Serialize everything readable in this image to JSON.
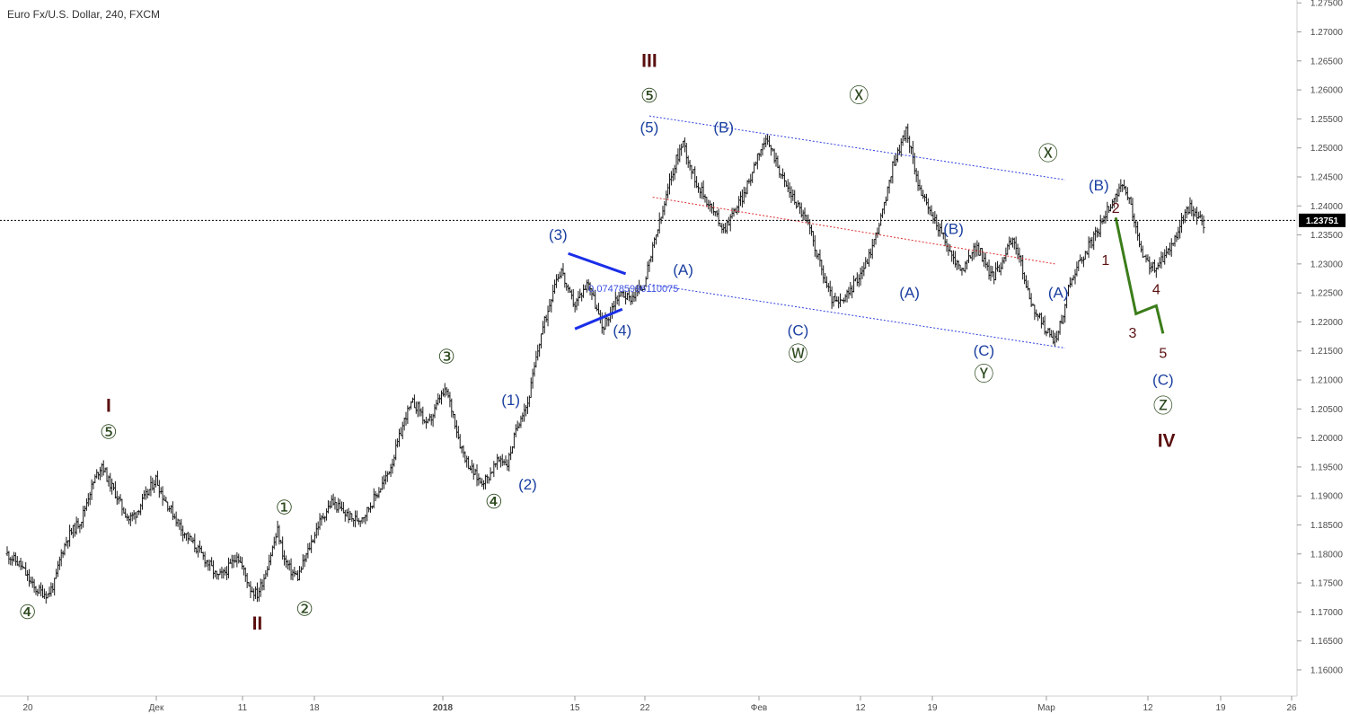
{
  "title": "Euro Fx/U.S. Dollar, 240, FXCM",
  "colors": {
    "candle": "#1a1a1a",
    "blue_label": "#1a3fa0",
    "green_label": "#2d4a1f",
    "maroon_label": "#5a0f0f",
    "channel": "#3040e0",
    "mid_channel": "#e03030",
    "triangle": "#1a2ee8",
    "projection": "#3b7d1a"
  },
  "chart_data": {
    "type": "candlestick",
    "symbol": "Euro Fx/U.S. Dollar",
    "timeframe": "240",
    "source": "FXCM",
    "ylim": [
      1.1555,
      1.2755
    ],
    "price_ticks": [
      "1.27500",
      "1.27000",
      "1.26500",
      "1.26000",
      "1.25500",
      "1.25000",
      "1.24500",
      "1.24000",
      "1.23500",
      "1.23000",
      "1.22500",
      "1.22000",
      "1.21500",
      "1.21000",
      "1.20500",
      "1.20000",
      "1.19500",
      "1.19000",
      "1.18500",
      "1.18000",
      "1.17500",
      "1.17000",
      "1.16500",
      "1.16000"
    ],
    "time_ticks": [
      "20",
      "Дек",
      "11",
      "18",
      "2018",
      "15",
      "22",
      "Фев",
      "12",
      "19",
      "Мар",
      "12",
      "19",
      "26"
    ],
    "last_price": "1.23751",
    "triangle_note": "0.074785996110075",
    "price_path": [
      [
        0,
        1.18
      ],
      [
        4,
        1.179
      ],
      [
        8,
        1.178
      ],
      [
        12,
        1.176
      ],
      [
        16,
        1.174
      ],
      [
        20,
        1.1735
      ],
      [
        24,
        1.173
      ],
      [
        28,
        1.175
      ],
      [
        32,
        1.18
      ],
      [
        36,
        1.183
      ],
      [
        40,
        1.1845
      ],
      [
        44,
        1.186
      ],
      [
        48,
        1.19
      ],
      [
        52,
        1.193
      ],
      [
        56,
        1.1955
      ],
      [
        60,
        1.1925
      ],
      [
        64,
        1.1905
      ],
      [
        68,
        1.188
      ],
      [
        72,
        1.186
      ],
      [
        76,
        1.187
      ],
      [
        80,
        1.189
      ],
      [
        84,
        1.191
      ],
      [
        88,
        1.193
      ],
      [
        92,
        1.19
      ],
      [
        96,
        1.188
      ],
      [
        100,
        1.186
      ],
      [
        104,
        1.184
      ],
      [
        108,
        1.1825
      ],
      [
        112,
        1.181
      ],
      [
        116,
        1.1795
      ],
      [
        120,
        1.178
      ],
      [
        124,
        1.176
      ],
      [
        128,
        1.1765
      ],
      [
        132,
        1.178
      ],
      [
        136,
        1.18
      ],
      [
        140,
        1.177
      ],
      [
        144,
        1.174
      ],
      [
        148,
        1.173
      ],
      [
        152,
        1.176
      ],
      [
        156,
        1.18
      ],
      [
        160,
        1.184
      ],
      [
        164,
        1.179
      ],
      [
        168,
        1.177
      ],
      [
        172,
        1.176
      ],
      [
        176,
        1.179
      ],
      [
        180,
        1.182
      ],
      [
        184,
        1.185
      ],
      [
        188,
        1.187
      ],
      [
        192,
        1.189
      ],
      [
        196,
        1.188
      ],
      [
        200,
        1.187
      ],
      [
        204,
        1.186
      ],
      [
        208,
        1.186
      ],
      [
        212,
        1.187
      ],
      [
        216,
        1.189
      ],
      [
        220,
        1.191
      ],
      [
        224,
        1.193
      ],
      [
        228,
        1.196
      ],
      [
        232,
        1.2
      ],
      [
        236,
        1.204
      ],
      [
        240,
        1.206
      ],
      [
        244,
        1.205
      ],
      [
        248,
        1.202
      ],
      [
        252,
        1.204
      ],
      [
        256,
        1.207
      ],
      [
        260,
        1.208
      ],
      [
        264,
        1.204
      ],
      [
        268,
        1.199
      ],
      [
        272,
        1.196
      ],
      [
        276,
        1.194
      ],
      [
        280,
        1.1925
      ],
      [
        284,
        1.193
      ],
      [
        288,
        1.195
      ],
      [
        292,
        1.1965
      ],
      [
        296,
        1.1955
      ],
      [
        300,
        1.2
      ],
      [
        304,
        1.204
      ],
      [
        308,
        1.206
      ],
      [
        312,
        1.212
      ],
      [
        316,
        1.218
      ],
      [
        320,
        1.222
      ],
      [
        324,
        1.227
      ],
      [
        328,
        1.229
      ],
      [
        332,
        1.225
      ],
      [
        336,
        1.223
      ],
      [
        340,
        1.225
      ],
      [
        344,
        1.227
      ],
      [
        348,
        1.223
      ],
      [
        352,
        1.219
      ],
      [
        356,
        1.221
      ],
      [
        360,
        1.224
      ],
      [
        364,
        1.225
      ],
      [
        368,
        1.224
      ],
      [
        372,
        1.225
      ],
      [
        376,
        1.226
      ],
      [
        380,
        1.23
      ],
      [
        384,
        1.235
      ],
      [
        388,
        1.239
      ],
      [
        392,
        1.244
      ],
      [
        396,
        1.248
      ],
      [
        400,
        1.251
      ],
      [
        404,
        1.247
      ],
      [
        408,
        1.244
      ],
      [
        412,
        1.242
      ],
      [
        416,
        1.24
      ],
      [
        420,
        1.238
      ],
      [
        424,
        1.236
      ],
      [
        428,
        1.238
      ],
      [
        432,
        1.24
      ],
      [
        436,
        1.242
      ],
      [
        440,
        1.245
      ],
      [
        444,
        1.249
      ],
      [
        448,
        1.251
      ],
      [
        452,
        1.25
      ],
      [
        456,
        1.247
      ],
      [
        460,
        1.244
      ],
      [
        464,
        1.242
      ],
      [
        468,
        1.24
      ],
      [
        472,
        1.238
      ],
      [
        476,
        1.235
      ],
      [
        480,
        1.231
      ],
      [
        484,
        1.227
      ],
      [
        488,
        1.224
      ],
      [
        492,
        1.223
      ],
      [
        496,
        1.224
      ],
      [
        500,
        1.226
      ],
      [
        504,
        1.228
      ],
      [
        508,
        1.23
      ],
      [
        512,
        1.233
      ],
      [
        516,
        1.237
      ],
      [
        520,
        1.241
      ],
      [
        524,
        1.247
      ],
      [
        528,
        1.25
      ],
      [
        532,
        1.253
      ],
      [
        536,
        1.248
      ],
      [
        540,
        1.243
      ],
      [
        544,
        1.24
      ],
      [
        548,
        1.238
      ],
      [
        552,
        1.236
      ],
      [
        556,
        1.233
      ],
      [
        560,
        1.231
      ],
      [
        564,
        1.229
      ],
      [
        568,
        1.23
      ],
      [
        572,
        1.233
      ],
      [
        576,
        1.232
      ],
      [
        580,
        1.229
      ],
      [
        584,
        1.228
      ],
      [
        588,
        1.23
      ],
      [
        592,
        1.233
      ],
      [
        596,
        1.234
      ],
      [
        600,
        1.23
      ],
      [
        604,
        1.225
      ],
      [
        608,
        1.222
      ],
      [
        612,
        1.22
      ],
      [
        616,
        1.218
      ],
      [
        620,
        1.217
      ],
      [
        624,
        1.22
      ],
      [
        628,
        1.226
      ],
      [
        632,
        1.229
      ],
      [
        636,
        1.231
      ],
      [
        640,
        1.233
      ],
      [
        644,
        1.235
      ],
      [
        648,
        1.237
      ],
      [
        652,
        1.24
      ],
      [
        656,
        1.242
      ],
      [
        660,
        1.243
      ],
      [
        664,
        1.241
      ],
      [
        668,
        1.236
      ],
      [
        672,
        1.231
      ],
      [
        676,
        1.23
      ],
      [
        680,
        1.229
      ],
      [
        684,
        1.231
      ],
      [
        688,
        1.233
      ],
      [
        692,
        1.235
      ],
      [
        696,
        1.238
      ],
      [
        700,
        1.24
      ],
      [
        704,
        1.238
      ],
      [
        708,
        1.237
      ]
    ],
    "wave_labels": [
      {
        "text": "I",
        "t": 60,
        "p": 1.2055,
        "style": "maroon_big"
      },
      {
        "text": "⑤",
        "t": 60,
        "p": 1.201,
        "style": "green_circle"
      },
      {
        "text": "④",
        "t": 12,
        "p": 1.17,
        "style": "green_circle"
      },
      {
        "text": "II",
        "t": 148,
        "p": 1.168,
        "style": "maroon_big"
      },
      {
        "text": "①",
        "t": 164,
        "p": 1.188,
        "style": "green_circle"
      },
      {
        "text": "②",
        "t": 176,
        "p": 1.1705,
        "style": "green_circle"
      },
      {
        "text": "③",
        "t": 260,
        "p": 1.214,
        "style": "green_circle"
      },
      {
        "text": "④",
        "t": 288,
        "p": 1.189,
        "style": "green_circle"
      },
      {
        "text": "(1)",
        "t": 298,
        "p": 1.2065,
        "style": "blue"
      },
      {
        "text": "(2)",
        "t": 308,
        "p": 1.192,
        "style": "blue"
      },
      {
        "text": "(3)",
        "t": 326,
        "p": 1.235,
        "style": "blue"
      },
      {
        "text": "(4)",
        "t": 364,
        "p": 1.2185,
        "style": "blue"
      },
      {
        "text": "III",
        "t": 380,
        "p": 1.265,
        "style": "maroon_big"
      },
      {
        "text": "⑤",
        "t": 380,
        "p": 1.259,
        "style": "green_circle"
      },
      {
        "text": "(5)",
        "t": 380,
        "p": 1.2535,
        "style": "blue"
      },
      {
        "text": "(A)",
        "t": 400,
        "p": 1.229,
        "style": "blue"
      },
      {
        "text": "(B)",
        "t": 424,
        "p": 1.2535,
        "style": "blue"
      },
      {
        "text": "(C)",
        "t": 468,
        "p": 1.2185,
        "style": "blue"
      },
      {
        "text": "Ⓦ",
        "t": 468,
        "p": 1.2145,
        "style": "green_circle"
      },
      {
        "text": "Ⓧ",
        "t": 504,
        "p": 1.259,
        "style": "green_circle"
      },
      {
        "text": "(A)",
        "t": 534,
        "p": 1.225,
        "style": "blue"
      },
      {
        "text": "(B)",
        "t": 560,
        "p": 1.236,
        "style": "blue"
      },
      {
        "text": "(C)",
        "t": 578,
        "p": 1.215,
        "style": "blue"
      },
      {
        "text": "Ⓨ",
        "t": 578,
        "p": 1.211,
        "style": "green_circle"
      },
      {
        "text": "Ⓧ",
        "t": 616,
        "p": 1.249,
        "style": "green_circle"
      },
      {
        "text": "(A)",
        "t": 622,
        "p": 1.225,
        "style": "blue"
      },
      {
        "text": "(B)",
        "t": 646,
        "p": 1.2435,
        "style": "blue"
      },
      {
        "text": "2",
        "t": 656,
        "p": 1.2395,
        "style": "maroon_small"
      },
      {
        "text": "1",
        "t": 650,
        "p": 1.2305,
        "style": "maroon_small"
      },
      {
        "text": "4",
        "t": 680,
        "p": 1.2255,
        "style": "maroon_small"
      },
      {
        "text": "3",
        "t": 666,
        "p": 1.218,
        "style": "maroon_small"
      },
      {
        "text": "5",
        "t": 684,
        "p": 1.2145,
        "style": "maroon_small"
      },
      {
        "text": "(C)",
        "t": 684,
        "p": 1.21,
        "style": "blue"
      },
      {
        "text": "Ⓩ",
        "t": 684,
        "p": 1.2055,
        "style": "green_circle"
      },
      {
        "text": "IV",
        "t": 686,
        "p": 1.1995,
        "style": "maroon_big"
      }
    ],
    "channel_upper": [
      [
        380,
        1.2555
      ],
      [
        626,
        1.2445
      ]
    ],
    "channel_lower": [
      [
        380,
        1.2265
      ],
      [
        626,
        1.2155
      ]
    ],
    "channel_mid": [
      [
        382,
        1.2415
      ],
      [
        620,
        1.23
      ]
    ],
    "triangle_upper": [
      [
        332,
        1.2318
      ],
      [
        366,
        1.2283
      ]
    ],
    "triangle_lower": [
      [
        336,
        1.2188
      ],
      [
        364,
        1.2222
      ]
    ],
    "projection": [
      [
        656,
        1.238
      ],
      [
        668,
        1.2214
      ],
      [
        680,
        1.2228
      ],
      [
        684,
        1.218
      ]
    ]
  }
}
